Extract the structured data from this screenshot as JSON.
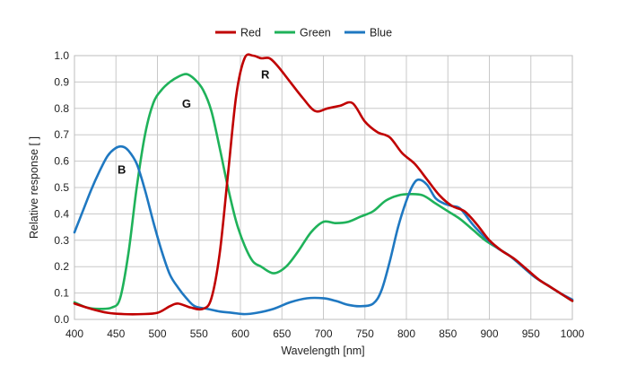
{
  "chart_data": {
    "type": "line",
    "title": "",
    "xlabel": "Wavelength [nm]",
    "ylabel": "Relative response [ ]",
    "xlim": [
      400,
      1000
    ],
    "ylim": [
      0,
      1.0
    ],
    "x_ticks": [
      400,
      450,
      500,
      550,
      600,
      650,
      700,
      750,
      800,
      850,
      900,
      950,
      1000
    ],
    "y_ticks": [
      "0.0",
      "0.1",
      "0.2",
      "0.3",
      "0.4",
      "0.5",
      "0.6",
      "0.7",
      "0.8",
      "0.9",
      "1.0"
    ],
    "grid": true,
    "legend_position": "top-center",
    "annotations": [
      {
        "text": "B",
        "x": 457,
        "y": 0.57
      },
      {
        "text": "G",
        "x": 535,
        "y": 0.82
      },
      {
        "text": "R",
        "x": 630,
        "y": 0.93
      }
    ],
    "series": [
      {
        "name": "Red",
        "color": "#c00000",
        "points": [
          [
            400,
            0.06
          ],
          [
            420,
            0.04
          ],
          [
            440,
            0.025
          ],
          [
            460,
            0.02
          ],
          [
            480,
            0.02
          ],
          [
            500,
            0.025
          ],
          [
            515,
            0.05
          ],
          [
            525,
            0.06
          ],
          [
            540,
            0.045
          ],
          [
            555,
            0.04
          ],
          [
            565,
            0.08
          ],
          [
            575,
            0.25
          ],
          [
            585,
            0.55
          ],
          [
            595,
            0.85
          ],
          [
            605,
            0.99
          ],
          [
            615,
            1.0
          ],
          [
            625,
            0.99
          ],
          [
            635,
            0.99
          ],
          [
            645,
            0.96
          ],
          [
            660,
            0.9
          ],
          [
            675,
            0.84
          ],
          [
            690,
            0.79
          ],
          [
            705,
            0.8
          ],
          [
            720,
            0.81
          ],
          [
            735,
            0.82
          ],
          [
            750,
            0.75
          ],
          [
            765,
            0.71
          ],
          [
            780,
            0.69
          ],
          [
            795,
            0.63
          ],
          [
            810,
            0.59
          ],
          [
            825,
            0.53
          ],
          [
            840,
            0.47
          ],
          [
            855,
            0.43
          ],
          [
            870,
            0.41
          ],
          [
            885,
            0.36
          ],
          [
            900,
            0.3
          ],
          [
            915,
            0.26
          ],
          [
            930,
            0.23
          ],
          [
            945,
            0.19
          ],
          [
            960,
            0.15
          ],
          [
            975,
            0.12
          ],
          [
            990,
            0.09
          ],
          [
            1000,
            0.07
          ]
        ]
      },
      {
        "name": "Green",
        "color": "#1fb25a",
        "points": [
          [
            400,
            0.065
          ],
          [
            415,
            0.045
          ],
          [
            430,
            0.04
          ],
          [
            445,
            0.045
          ],
          [
            455,
            0.08
          ],
          [
            465,
            0.25
          ],
          [
            475,
            0.5
          ],
          [
            485,
            0.7
          ],
          [
            495,
            0.82
          ],
          [
            505,
            0.87
          ],
          [
            515,
            0.9
          ],
          [
            525,
            0.92
          ],
          [
            535,
            0.93
          ],
          [
            545,
            0.91
          ],
          [
            555,
            0.87
          ],
          [
            565,
            0.79
          ],
          [
            575,
            0.65
          ],
          [
            585,
            0.5
          ],
          [
            595,
            0.37
          ],
          [
            605,
            0.28
          ],
          [
            615,
            0.22
          ],
          [
            625,
            0.2
          ],
          [
            640,
            0.175
          ],
          [
            655,
            0.2
          ],
          [
            670,
            0.26
          ],
          [
            685,
            0.33
          ],
          [
            700,
            0.37
          ],
          [
            715,
            0.365
          ],
          [
            730,
            0.37
          ],
          [
            745,
            0.39
          ],
          [
            760,
            0.41
          ],
          [
            775,
            0.45
          ],
          [
            790,
            0.47
          ],
          [
            805,
            0.475
          ],
          [
            820,
            0.47
          ],
          [
            835,
            0.44
          ],
          [
            850,
            0.41
          ],
          [
            865,
            0.38
          ],
          [
            880,
            0.34
          ],
          [
            895,
            0.3
          ],
          [
            910,
            0.27
          ],
          [
            925,
            0.24
          ],
          [
            940,
            0.2
          ],
          [
            955,
            0.16
          ],
          [
            970,
            0.13
          ],
          [
            985,
            0.1
          ],
          [
            1000,
            0.07
          ]
        ]
      },
      {
        "name": "Blue",
        "color": "#1f78c1",
        "points": [
          [
            400,
            0.33
          ],
          [
            410,
            0.41
          ],
          [
            420,
            0.49
          ],
          [
            430,
            0.56
          ],
          [
            440,
            0.62
          ],
          [
            450,
            0.65
          ],
          [
            458,
            0.655
          ],
          [
            465,
            0.64
          ],
          [
            475,
            0.59
          ],
          [
            485,
            0.49
          ],
          [
            495,
            0.37
          ],
          [
            505,
            0.26
          ],
          [
            515,
            0.17
          ],
          [
            525,
            0.12
          ],
          [
            535,
            0.08
          ],
          [
            545,
            0.05
          ],
          [
            560,
            0.04
          ],
          [
            575,
            0.03
          ],
          [
            590,
            0.025
          ],
          [
            605,
            0.02
          ],
          [
            620,
            0.025
          ],
          [
            640,
            0.04
          ],
          [
            660,
            0.065
          ],
          [
            680,
            0.08
          ],
          [
            700,
            0.08
          ],
          [
            715,
            0.07
          ],
          [
            730,
            0.055
          ],
          [
            745,
            0.05
          ],
          [
            760,
            0.06
          ],
          [
            770,
            0.11
          ],
          [
            780,
            0.22
          ],
          [
            790,
            0.35
          ],
          [
            800,
            0.45
          ],
          [
            808,
            0.51
          ],
          [
            815,
            0.53
          ],
          [
            825,
            0.51
          ],
          [
            835,
            0.46
          ],
          [
            845,
            0.44
          ],
          [
            855,
            0.43
          ],
          [
            865,
            0.42
          ],
          [
            880,
            0.36
          ],
          [
            895,
            0.31
          ],
          [
            910,
            0.27
          ],
          [
            925,
            0.24
          ],
          [
            940,
            0.2
          ],
          [
            955,
            0.16
          ],
          [
            970,
            0.13
          ],
          [
            985,
            0.1
          ],
          [
            1000,
            0.075
          ]
        ]
      }
    ]
  }
}
